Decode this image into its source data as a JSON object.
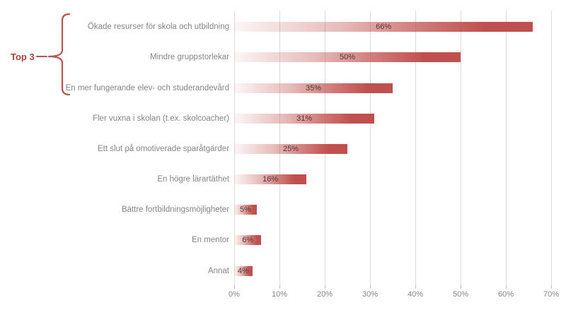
{
  "annotation": {
    "label": "Top 3"
  },
  "colors": {
    "bar": "#c0504d",
    "bar_gradient_start": "rgba(192,80,77,0.05)",
    "gridline": "#d9d9d9",
    "tick": "#bfbfbf",
    "category_label": "#858585",
    "axis_label": "#858585",
    "data_label": "#553333",
    "annotation_text": "#a8423f",
    "brace": "#b8534f",
    "background": "#ffffff"
  },
  "chart_data": {
    "type": "bar",
    "orientation": "horizontal",
    "title": "",
    "xlabel": "",
    "ylabel": "",
    "categories": [
      "Ökade resurser för skola och utbildning",
      "Mindre gruppstorlekar",
      "En mer fungerande elev- och studerandevård",
      "Fler vuxna i skolan (t.ex. skolcoacher)",
      "Ett slut på omotiverade sparåtgärder",
      "En högre lärartäthet",
      "Bättre fortbildningsmöjligheter",
      "En mentor",
      "Annat"
    ],
    "values": [
      66,
      50,
      35,
      31,
      25,
      16,
      5,
      6,
      4
    ],
    "data_labels": [
      "66%",
      "50%",
      "35%",
      "31%",
      "25%",
      "16%",
      "5%",
      "6%",
      "4%"
    ],
    "xlim": [
      0,
      70
    ],
    "x_tick_values": [
      0,
      10,
      20,
      30,
      40,
      50,
      60,
      70
    ],
    "x_tick_labels": [
      "0%",
      "10%",
      "20%",
      "30%",
      "40%",
      "50%",
      "60%",
      "70%"
    ],
    "grid": "vertical",
    "legend": "none",
    "annotation": {
      "text": "Top 3",
      "applies_to_first_n_bars": 3
    }
  }
}
